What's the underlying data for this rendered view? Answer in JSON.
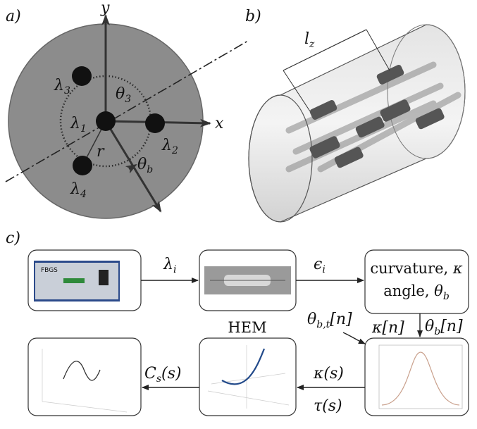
{
  "panel_a": {
    "label": "a)",
    "axis_x": "x",
    "axis_y": "y",
    "lambda_3": {
      "main": "λ",
      "sub": "3"
    },
    "lambda_1": {
      "main": "λ",
      "sub": "1"
    },
    "lambda_2": {
      "main": "λ",
      "sub": "2"
    },
    "lambda_4": {
      "main": "λ",
      "sub": "4"
    },
    "theta_3": {
      "main": "θ",
      "sub": "3"
    },
    "theta_b": {
      "main": "θ",
      "sub": "b"
    },
    "radius": "r"
  },
  "panel_b": {
    "label": "b)",
    "length": {
      "main": "l",
      "sub": "z"
    }
  },
  "panel_c": {
    "label": "c)",
    "device_text": "FBGS",
    "edge_lambda": {
      "main": "λ",
      "sub": "i"
    },
    "edge_epsilon": {
      "main": "ϵ",
      "sub": "i"
    },
    "box_curvature": {
      "text": "curvature, ",
      "symbol": "κ"
    },
    "box_angle": {
      "text": "angle, ",
      "main": "θ",
      "sub": "b"
    },
    "edge_theta_bt": {
      "main": "θ",
      "sub": "b,t",
      "rest": "[n]"
    },
    "edge_kappa_n": "κ[n]",
    "edge_theta_bn": {
      "main": "θ",
      "sub": "b",
      "rest": "[n]"
    },
    "hem": "HEM",
    "edge_kappa_s": "κ(s)",
    "edge_tau_s": "τ(s)",
    "edge_cs": {
      "main": "C",
      "sub": "s",
      "rest": "(s)"
    }
  }
}
